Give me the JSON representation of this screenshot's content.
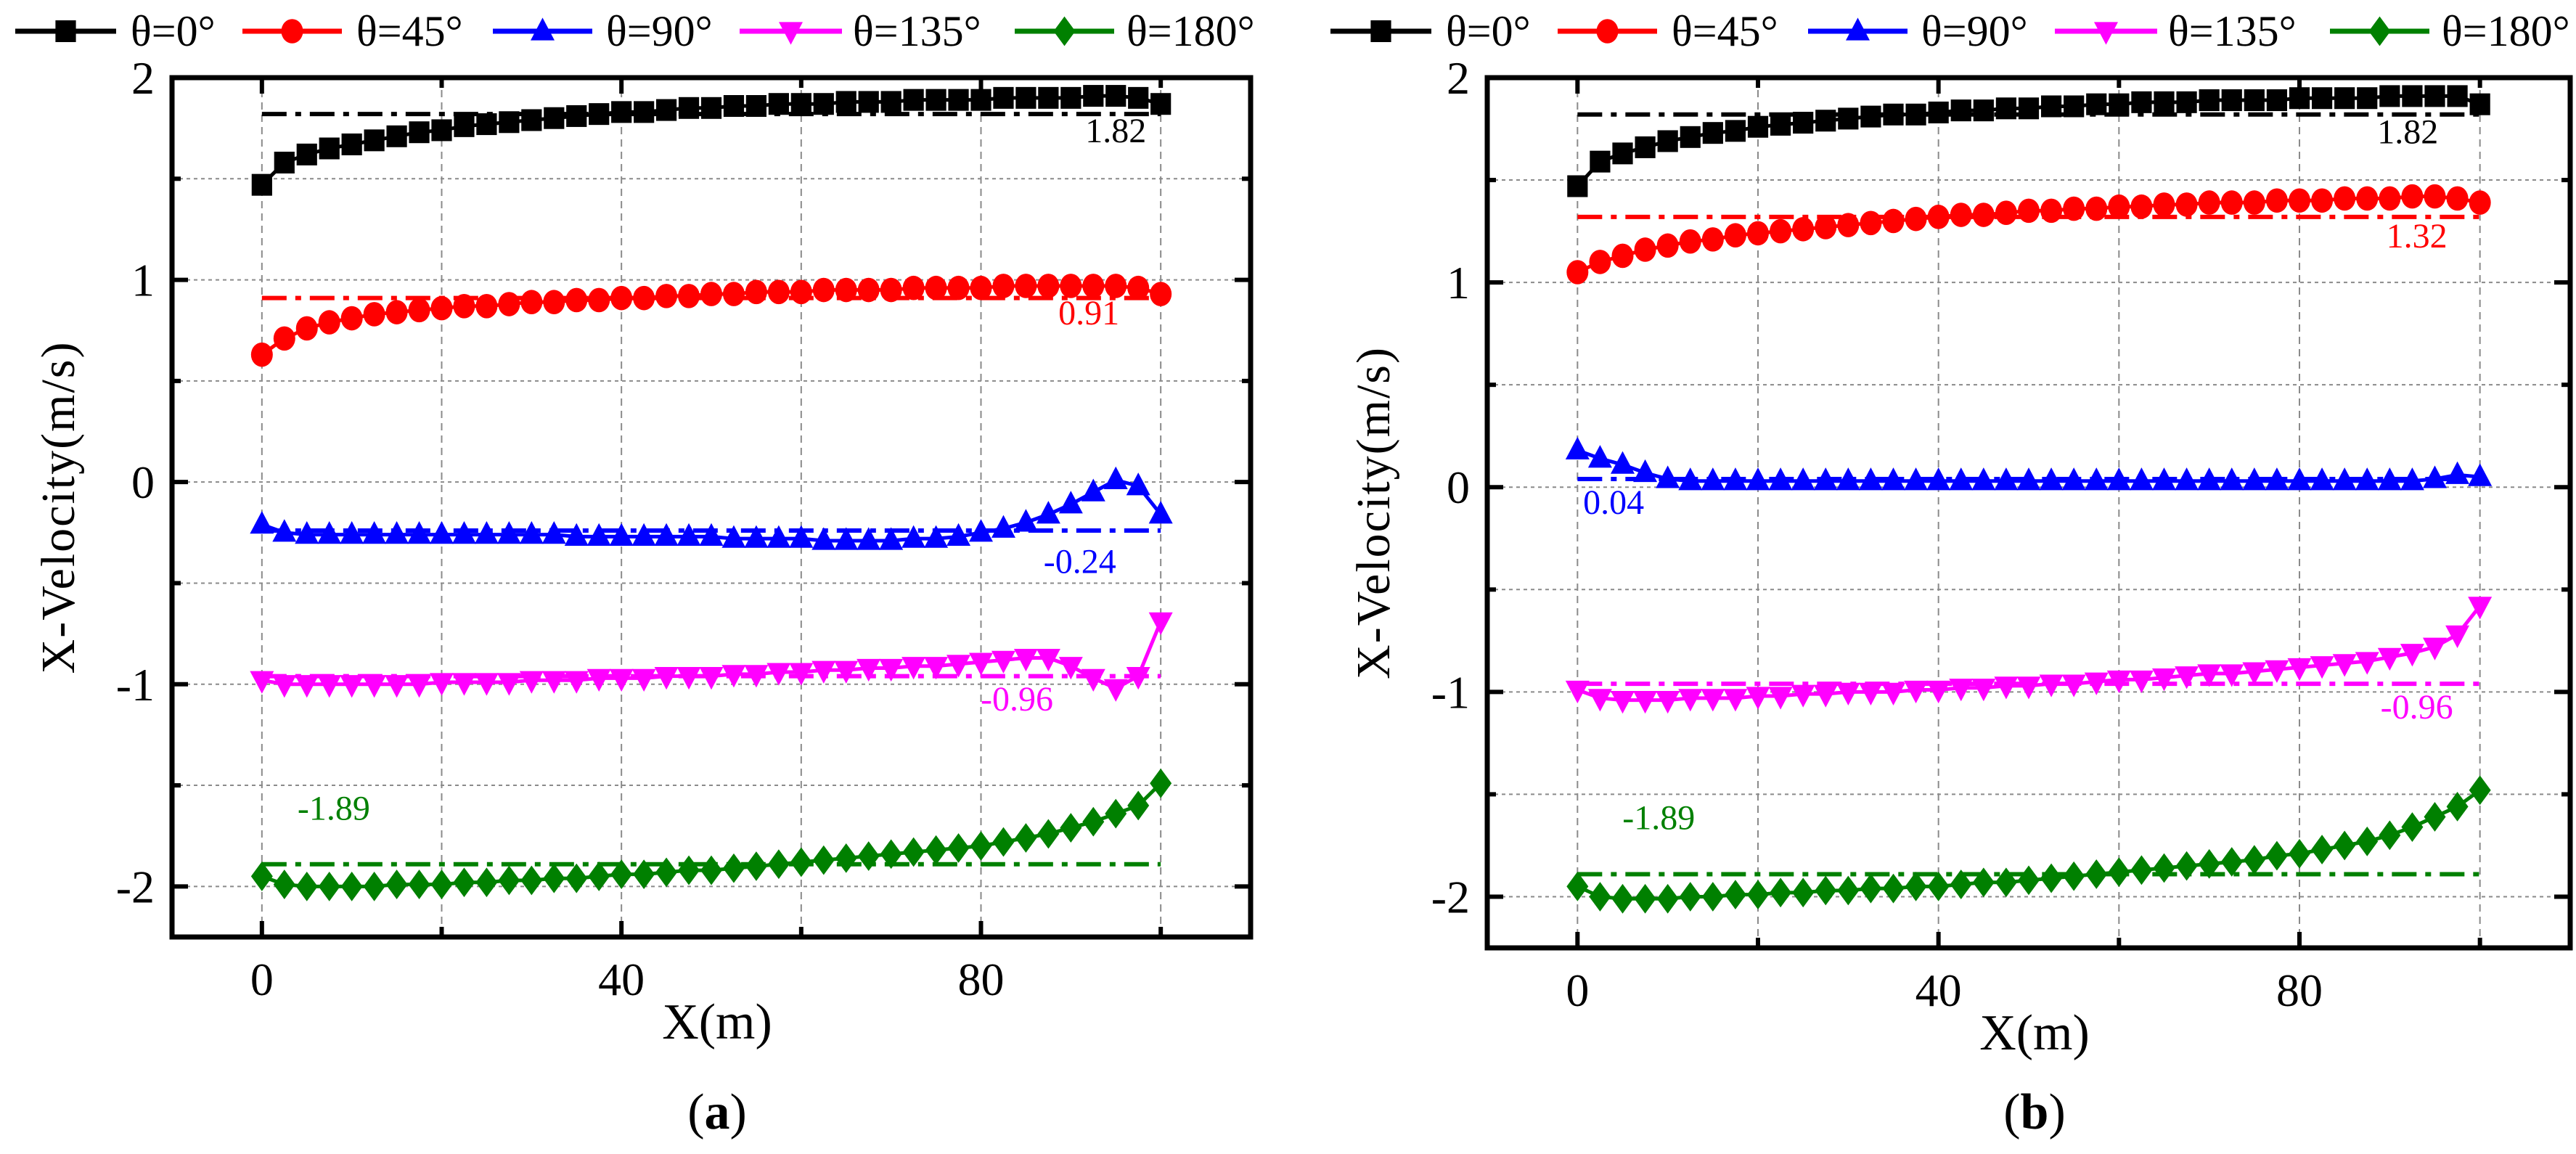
{
  "legend": [
    {
      "label": "θ=0°",
      "color": "#000000",
      "marker": "square"
    },
    {
      "label": "θ=45°",
      "color": "#ff0000",
      "marker": "circle"
    },
    {
      "label": "θ=90°",
      "color": "#0000ff",
      "marker": "triangle-up"
    },
    {
      "label": "θ=135°",
      "color": "#ff00ff",
      "marker": "triangle-down"
    },
    {
      "label": "θ=180°",
      "color": "#008000",
      "marker": "diamond"
    }
  ],
  "chart_data": [
    {
      "type": "line",
      "panel_label": "a",
      "xlabel": "X(m)",
      "ylabel": "X-Velocity(m/s)",
      "xlim": [
        -10,
        110
      ],
      "ylim": [
        -2.25,
        2
      ],
      "xticks": [
        0,
        40,
        80
      ],
      "yticks": [
        -2,
        -1,
        0,
        1,
        2
      ],
      "grid": true,
      "legend_position": "top",
      "x_start": 0,
      "x_step": 2.5,
      "series": [
        {
          "name": "θ=0°",
          "mean": 1.82,
          "mean_label": "1.82",
          "values": [
            1.47,
            1.58,
            1.62,
            1.65,
            1.67,
            1.69,
            1.71,
            1.73,
            1.74,
            1.76,
            1.77,
            1.78,
            1.79,
            1.8,
            1.81,
            1.82,
            1.83,
            1.83,
            1.84,
            1.85,
            1.85,
            1.86,
            1.86,
            1.87,
            1.87,
            1.87,
            1.88,
            1.88,
            1.88,
            1.89,
            1.89,
            1.89,
            1.89,
            1.9,
            1.9,
            1.9,
            1.9,
            1.91,
            1.91,
            1.9,
            1.87
          ]
        },
        {
          "name": "θ=45°",
          "mean": 0.91,
          "mean_label": "0.91",
          "values": [
            0.63,
            0.71,
            0.76,
            0.79,
            0.81,
            0.83,
            0.84,
            0.85,
            0.86,
            0.87,
            0.87,
            0.88,
            0.89,
            0.89,
            0.9,
            0.9,
            0.91,
            0.91,
            0.92,
            0.92,
            0.93,
            0.93,
            0.94,
            0.94,
            0.94,
            0.95,
            0.95,
            0.95,
            0.95,
            0.96,
            0.96,
            0.96,
            0.96,
            0.97,
            0.97,
            0.97,
            0.97,
            0.97,
            0.97,
            0.96,
            0.93
          ]
        },
        {
          "name": "θ=90°",
          "mean": -0.24,
          "mean_label": "-0.24",
          "values": [
            -0.21,
            -0.25,
            -0.26,
            -0.26,
            -0.26,
            -0.26,
            -0.26,
            -0.26,
            -0.26,
            -0.26,
            -0.26,
            -0.26,
            -0.26,
            -0.26,
            -0.27,
            -0.27,
            -0.27,
            -0.27,
            -0.27,
            -0.27,
            -0.27,
            -0.28,
            -0.28,
            -0.28,
            -0.28,
            -0.29,
            -0.29,
            -0.29,
            -0.29,
            -0.28,
            -0.28,
            -0.27,
            -0.25,
            -0.23,
            -0.2,
            -0.16,
            -0.11,
            -0.05,
            0.01,
            -0.02,
            -0.16
          ]
        },
        {
          "name": "θ=135°",
          "mean": -0.96,
          "mean_label": "-0.96",
          "values": [
            -0.98,
            -1.0,
            -1.0,
            -1.0,
            -1.0,
            -1.0,
            -1.0,
            -1.0,
            -0.99,
            -0.99,
            -0.99,
            -0.99,
            -0.98,
            -0.98,
            -0.98,
            -0.97,
            -0.97,
            -0.97,
            -0.96,
            -0.96,
            -0.96,
            -0.95,
            -0.95,
            -0.94,
            -0.94,
            -0.93,
            -0.93,
            -0.92,
            -0.92,
            -0.91,
            -0.91,
            -0.9,
            -0.89,
            -0.88,
            -0.87,
            -0.87,
            -0.91,
            -0.97,
            -1.02,
            -0.96,
            -0.69
          ]
        },
        {
          "name": "θ=180°",
          "mean": -1.89,
          "mean_label": "-1.89",
          "values": [
            -1.95,
            -1.99,
            -2.0,
            -2.0,
            -2.0,
            -2.0,
            -1.99,
            -1.99,
            -1.99,
            -1.98,
            -1.98,
            -1.97,
            -1.97,
            -1.96,
            -1.96,
            -1.95,
            -1.94,
            -1.94,
            -1.93,
            -1.92,
            -1.92,
            -1.91,
            -1.9,
            -1.89,
            -1.88,
            -1.87,
            -1.86,
            -1.85,
            -1.84,
            -1.83,
            -1.82,
            -1.81,
            -1.8,
            -1.78,
            -1.76,
            -1.74,
            -1.71,
            -1.68,
            -1.64,
            -1.6,
            -1.49
          ]
        }
      ]
    },
    {
      "type": "line",
      "panel_label": "b",
      "xlabel": "X(m)",
      "ylabel": "X-Velocity(m/s)",
      "xlim": [
        -10,
        110
      ],
      "ylim": [
        -2.25,
        2
      ],
      "xticks": [
        0,
        40,
        80
      ],
      "yticks": [
        -2,
        -1,
        0,
        1,
        2
      ],
      "grid": true,
      "legend_position": "top",
      "x_start": 0,
      "x_step": 2.5,
      "series": [
        {
          "name": "θ=0°",
          "mean": 1.82,
          "mean_label": "1.82",
          "values": [
            1.47,
            1.59,
            1.63,
            1.66,
            1.69,
            1.71,
            1.73,
            1.74,
            1.76,
            1.77,
            1.78,
            1.79,
            1.8,
            1.81,
            1.82,
            1.82,
            1.83,
            1.84,
            1.84,
            1.85,
            1.85,
            1.86,
            1.86,
            1.87,
            1.87,
            1.88,
            1.88,
            1.88,
            1.89,
            1.89,
            1.89,
            1.89,
            1.9,
            1.9,
            1.9,
            1.9,
            1.91,
            1.91,
            1.91,
            1.91,
            1.87
          ]
        },
        {
          "name": "θ=45°",
          "mean": 1.32,
          "mean_label": "1.32",
          "values": [
            1.05,
            1.1,
            1.13,
            1.16,
            1.18,
            1.2,
            1.21,
            1.23,
            1.24,
            1.25,
            1.26,
            1.27,
            1.28,
            1.29,
            1.3,
            1.31,
            1.32,
            1.33,
            1.33,
            1.34,
            1.35,
            1.35,
            1.36,
            1.36,
            1.37,
            1.37,
            1.38,
            1.38,
            1.39,
            1.39,
            1.39,
            1.4,
            1.4,
            1.4,
            1.41,
            1.41,
            1.41,
            1.42,
            1.42,
            1.41,
            1.39
          ]
        },
        {
          "name": "θ=90°",
          "mean": 0.04,
          "mean_label": "0.04",
          "values": [
            0.18,
            0.14,
            0.11,
            0.07,
            0.04,
            0.03,
            0.03,
            0.03,
            0.03,
            0.03,
            0.03,
            0.03,
            0.03,
            0.03,
            0.03,
            0.03,
            0.03,
            0.03,
            0.03,
            0.03,
            0.03,
            0.03,
            0.03,
            0.03,
            0.03,
            0.03,
            0.03,
            0.03,
            0.03,
            0.03,
            0.03,
            0.03,
            0.03,
            0.03,
            0.03,
            0.03,
            0.03,
            0.03,
            0.04,
            0.06,
            0.05
          ]
        },
        {
          "name": "θ=135°",
          "mean": -0.96,
          "mean_label": "-0.96",
          "values": [
            -0.99,
            -1.03,
            -1.04,
            -1.04,
            -1.04,
            -1.03,
            -1.03,
            -1.03,
            -1.02,
            -1.02,
            -1.01,
            -1.01,
            -1.0,
            -1.0,
            -1.0,
            -0.99,
            -0.99,
            -0.98,
            -0.98,
            -0.97,
            -0.97,
            -0.96,
            -0.96,
            -0.95,
            -0.94,
            -0.94,
            -0.93,
            -0.92,
            -0.91,
            -0.91,
            -0.9,
            -0.89,
            -0.88,
            -0.87,
            -0.86,
            -0.85,
            -0.83,
            -0.81,
            -0.78,
            -0.72,
            -0.58
          ]
        },
        {
          "name": "θ=180°",
          "mean": -1.89,
          "mean_label": "-1.89",
          "values": [
            -1.95,
            -2.0,
            -2.01,
            -2.01,
            -2.01,
            -2.0,
            -2.0,
            -1.99,
            -1.99,
            -1.98,
            -1.98,
            -1.97,
            -1.97,
            -1.96,
            -1.96,
            -1.95,
            -1.95,
            -1.94,
            -1.93,
            -1.93,
            -1.92,
            -1.91,
            -1.9,
            -1.89,
            -1.88,
            -1.87,
            -1.86,
            -1.85,
            -1.84,
            -1.83,
            -1.82,
            -1.8,
            -1.79,
            -1.77,
            -1.75,
            -1.73,
            -1.7,
            -1.66,
            -1.61,
            -1.56,
            -1.48
          ]
        }
      ]
    }
  ]
}
